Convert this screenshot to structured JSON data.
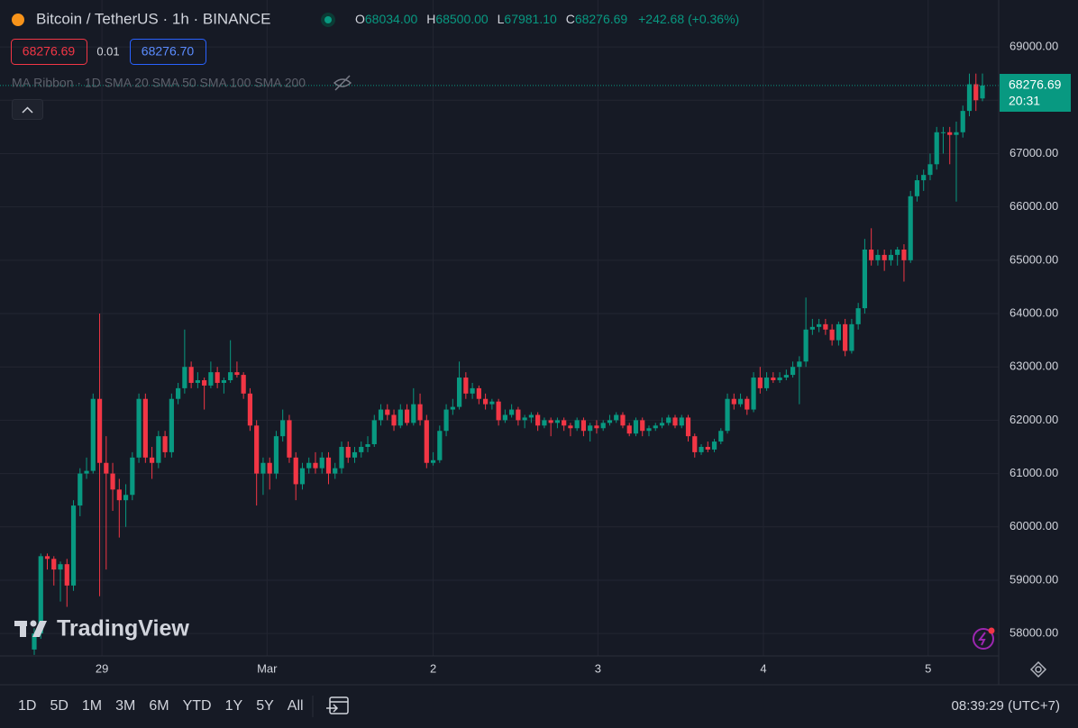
{
  "header": {
    "symbol": "Bitcoin / TetherUS · 1h · BINANCE",
    "o_label": "O",
    "o": "68034.00",
    "h_label": "H",
    "h": "68500.00",
    "l_label": "L",
    "l": "67981.10",
    "c_label": "C",
    "c": "68276.69",
    "change": "+242.68 (+0.36%)",
    "bid": "68276.69",
    "spread": "0.01",
    "ask": "68276.70",
    "indicator": "MA Ribbon · 1D SMA 20 SMA 50 SMA 100 SMA 200"
  },
  "price_label": {
    "price": "68276.69",
    "countdown": "20:31"
  },
  "logo": "TradingView",
  "toolbar": {
    "ranges": [
      "1D",
      "5D",
      "1M",
      "3M",
      "6M",
      "YTD",
      "1Y",
      "5Y",
      "All"
    ],
    "clock": "08:39:29 (UTC+7)"
  },
  "chart_data": {
    "type": "candlestick",
    "up_color": "#089981",
    "down_color": "#f23645",
    "grid": true,
    "ylim": [
      57580,
      69880
    ],
    "yticks": [
      {
        "value": 58000,
        "label": "58000.00"
      },
      {
        "value": 59000,
        "label": "59000.00"
      },
      {
        "value": 60000,
        "label": "60000.00"
      },
      {
        "value": 61000,
        "label": "61000.00"
      },
      {
        "value": 62000,
        "label": "62000.00"
      },
      {
        "value": 63000,
        "label": "63000.00"
      },
      {
        "value": 64000,
        "label": "64000.00"
      },
      {
        "value": 65000,
        "label": "65000.00"
      },
      {
        "value": 66000,
        "label": "66000.00"
      },
      {
        "value": 67000,
        "label": "67000.00"
      },
      {
        "value": 68000,
        "label": "68000.00"
      },
      {
        "value": 69000,
        "label": "69000.00"
      }
    ],
    "xlim": [
      0,
      145
    ],
    "xticks": [
      {
        "value": 10.35,
        "label": "29"
      },
      {
        "value": 35.6,
        "label": "Mar"
      },
      {
        "value": 61,
        "label": "2"
      },
      {
        "value": 86.2,
        "label": "3"
      },
      {
        "value": 111.5,
        "label": "4"
      },
      {
        "value": 136.7,
        "label": "5"
      }
    ],
    "ohlc": [
      [
        57700,
        58100,
        57600,
        58000
      ],
      [
        58000,
        59500,
        57900,
        59450
      ],
      [
        59450,
        59500,
        59200,
        59400
      ],
      [
        59400,
        59450,
        58900,
        59200
      ],
      [
        59200,
        59350,
        58600,
        59300
      ],
      [
        59300,
        59400,
        58500,
        58900
      ],
      [
        58900,
        60500,
        58800,
        60400
      ],
      [
        60400,
        61100,
        60200,
        61000
      ],
      [
        61000,
        61300,
        60900,
        61050
      ],
      [
        61050,
        62500,
        61000,
        62400
      ],
      [
        62400,
        64000,
        58700,
        61200
      ],
      [
        61200,
        61700,
        59200,
        61000
      ],
      [
        61000,
        61200,
        60300,
        60700
      ],
      [
        60700,
        60900,
        59800,
        60500
      ],
      [
        60500,
        60800,
        60000,
        60600
      ],
      [
        60600,
        61400,
        60500,
        61300
      ],
      [
        61300,
        62500,
        61200,
        62400
      ],
      [
        62400,
        62500,
        61200,
        61300
      ],
      [
        61300,
        61500,
        60900,
        61200
      ],
      [
        61200,
        61800,
        61100,
        61700
      ],
      [
        61700,
        61800,
        61300,
        61400
      ],
      [
        61400,
        62500,
        61300,
        62400
      ],
      [
        62400,
        62700,
        62300,
        62600
      ],
      [
        62600,
        63700,
        62500,
        63000
      ],
      [
        63000,
        63100,
        62600,
        62700
      ],
      [
        62700,
        62900,
        62600,
        62750
      ],
      [
        62750,
        62800,
        62200,
        62650
      ],
      [
        62650,
        63100,
        62600,
        62900
      ],
      [
        62900,
        63000,
        62600,
        62700
      ],
      [
        62700,
        62800,
        62500,
        62750
      ],
      [
        62750,
        63500,
        62700,
        62900
      ],
      [
        62900,
        63100,
        62800,
        62850
      ],
      [
        62850,
        62900,
        62400,
        62500
      ],
      [
        62500,
        62600,
        61800,
        61900
      ],
      [
        61900,
        62000,
        60400,
        61000
      ],
      [
        61000,
        61300,
        60600,
        61200
      ],
      [
        61200,
        61300,
        60700,
        61000
      ],
      [
        61000,
        61800,
        60900,
        61700
      ],
      [
        61700,
        62200,
        61600,
        62000
      ],
      [
        62000,
        62100,
        61200,
        61300
      ],
      [
        61300,
        61400,
        60500,
        60800
      ],
      [
        60800,
        61200,
        60700,
        61100
      ],
      [
        61100,
        61300,
        61000,
        61200
      ],
      [
        61200,
        61400,
        61000,
        61100
      ],
      [
        61100,
        61400,
        61000,
        61300
      ],
      [
        61300,
        61400,
        60800,
        61000
      ],
      [
        61000,
        61200,
        60900,
        61100
      ],
      [
        61100,
        61600,
        61000,
        61500
      ],
      [
        61500,
        61600,
        61200,
        61300
      ],
      [
        61300,
        61500,
        61200,
        61400
      ],
      [
        61400,
        61600,
        61300,
        61500
      ],
      [
        61500,
        61700,
        61400,
        61550
      ],
      [
        61550,
        62100,
        61500,
        62000
      ],
      [
        62000,
        62300,
        61900,
        62200
      ],
      [
        62200,
        62300,
        62000,
        62100
      ],
      [
        62100,
        62200,
        61800,
        61900
      ],
      [
        61900,
        62300,
        61850,
        62200
      ],
      [
        62200,
        62300,
        61900,
        61950
      ],
      [
        61950,
        62600,
        61900,
        62300
      ],
      [
        62300,
        62500,
        61900,
        62000
      ],
      [
        62000,
        62100,
        61100,
        61200
      ],
      [
        61200,
        61400,
        61150,
        61250
      ],
      [
        61250,
        61900,
        61200,
        61800
      ],
      [
        61800,
        62300,
        61700,
        62200
      ],
      [
        62200,
        62400,
        62100,
        62250
      ],
      [
        62250,
        63100,
        62200,
        62800
      ],
      [
        62800,
        62900,
        62400,
        62500
      ],
      [
        62500,
        62700,
        62400,
        62600
      ],
      [
        62600,
        62650,
        62300,
        62400
      ],
      [
        62400,
        62500,
        62200,
        62300
      ],
      [
        62300,
        62400,
        62200,
        62350
      ],
      [
        62350,
        62400,
        61900,
        62000
      ],
      [
        62000,
        62200,
        61950,
        62100
      ],
      [
        62100,
        62300,
        62050,
        62200
      ],
      [
        62200,
        62250,
        61900,
        62000
      ],
      [
        62000,
        62100,
        61850,
        62050
      ],
      [
        62050,
        62150,
        61950,
        62100
      ],
      [
        62100,
        62150,
        61800,
        61900
      ],
      [
        61900,
        62050,
        61850,
        62000
      ],
      [
        62000,
        62050,
        61700,
        61950
      ],
      [
        61950,
        62050,
        61850,
        62000
      ],
      [
        62000,
        62050,
        61800,
        61900
      ],
      [
        61900,
        61950,
        61700,
        61850
      ],
      [
        61850,
        62050,
        61800,
        62000
      ],
      [
        62000,
        62050,
        61700,
        61800
      ],
      [
        61800,
        61950,
        61600,
        61900
      ],
      [
        61900,
        62000,
        61750,
        61850
      ],
      [
        61850,
        62000,
        61800,
        61950
      ],
      [
        61950,
        62100,
        61900,
        62000
      ],
      [
        62000,
        62150,
        61950,
        62100
      ],
      [
        62100,
        62150,
        61850,
        61900
      ],
      [
        61900,
        61950,
        61700,
        61750
      ],
      [
        61750,
        62050,
        61700,
        62000
      ],
      [
        62000,
        62050,
        61700,
        61800
      ],
      [
        61800,
        61900,
        61700,
        61850
      ],
      [
        61850,
        61950,
        61800,
        61900
      ],
      [
        61900,
        62050,
        61850,
        61950
      ],
      [
        61950,
        62100,
        61900,
        62050
      ],
      [
        62050,
        62100,
        61850,
        61900
      ],
      [
        61900,
        62100,
        61850,
        62050
      ],
      [
        62050,
        62100,
        61600,
        61700
      ],
      [
        61700,
        61750,
        61300,
        61400
      ],
      [
        61400,
        61550,
        61350,
        61500
      ],
      [
        61500,
        61600,
        61400,
        61450
      ],
      [
        61450,
        61650,
        61400,
        61600
      ],
      [
        61600,
        61850,
        61550,
        61800
      ],
      [
        61800,
        62500,
        61750,
        62400
      ],
      [
        62400,
        62500,
        62200,
        62300
      ],
      [
        62300,
        62500,
        62250,
        62400
      ],
      [
        62400,
        62450,
        62100,
        62200
      ],
      [
        62200,
        62900,
        62150,
        62800
      ],
      [
        62800,
        63000,
        62500,
        62600
      ],
      [
        62600,
        62900,
        62550,
        62800
      ],
      [
        62800,
        62900,
        62700,
        62750
      ],
      [
        62750,
        62900,
        62700,
        62800
      ],
      [
        62800,
        62950,
        62750,
        62850
      ],
      [
        62850,
        63100,
        62800,
        63000
      ],
      [
        63000,
        63200,
        62300,
        63100
      ],
      [
        63100,
        64300,
        63000,
        63700
      ],
      [
        63700,
        63900,
        63600,
        63750
      ],
      [
        63750,
        63900,
        63650,
        63800
      ],
      [
        63800,
        63900,
        63600,
        63700
      ],
      [
        63700,
        63800,
        63400,
        63500
      ],
      [
        63500,
        63850,
        63400,
        63800
      ],
      [
        63800,
        63900,
        63200,
        63300
      ],
      [
        63300,
        63900,
        63250,
        63800
      ],
      [
        63800,
        64200,
        63700,
        64100
      ],
      [
        64100,
        65400,
        64000,
        65200
      ],
      [
        65200,
        65600,
        64900,
        65000
      ],
      [
        65000,
        65200,
        64900,
        65100
      ],
      [
        65100,
        65200,
        64800,
        65000
      ],
      [
        65000,
        65200,
        64900,
        65100
      ],
      [
        65100,
        65250,
        64900,
        65200
      ],
      [
        65200,
        65300,
        64600,
        65000
      ],
      [
        65000,
        66300,
        64950,
        66200
      ],
      [
        66200,
        66600,
        66100,
        66500
      ],
      [
        66500,
        66700,
        66300,
        66600
      ],
      [
        66600,
        67000,
        66500,
        66800
      ],
      [
        66800,
        67500,
        66700,
        67400
      ],
      [
        67400,
        67500,
        67000,
        67400
      ],
      [
        67400,
        67500,
        66800,
        67350
      ],
      [
        67350,
        67600,
        66100,
        67400
      ],
      [
        67400,
        67900,
        67300,
        67800
      ],
      [
        67800,
        68500,
        67700,
        68300
      ],
      [
        68300,
        68500,
        67800,
        68000
      ],
      [
        68034,
        68500,
        67981.1,
        68276.69
      ]
    ]
  }
}
